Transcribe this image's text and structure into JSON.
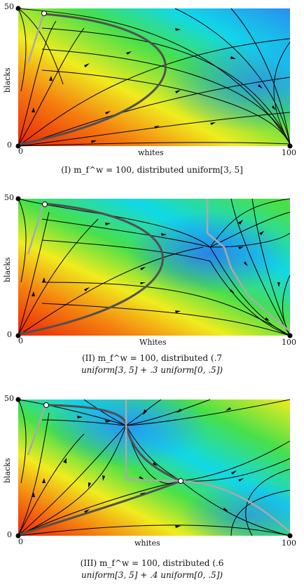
{
  "panels": [
    {
      "y_tick_top": "50",
      "y_tick_bottom": "0",
      "x_tick_left": "0",
      "x_tick_right": "100",
      "xlabel": "whites",
      "ylabel": "blacks",
      "caption_line1": "(I) m_f^w = 100, distributed uniform[3, 5]",
      "caption_line2": ""
    },
    {
      "y_tick_top": "50",
      "y_tick_bottom": "0",
      "x_tick_left": "0",
      "x_tick_right": "100",
      "xlabel": "Whites",
      "ylabel": "blacks",
      "caption_line1": "(II) m_f^w = 100, distributed (.7",
      "caption_line2": "uniform[3, 5] + .3 uniform[0, .5])"
    },
    {
      "y_tick_top": "50",
      "y_tick_bottom": "0",
      "x_tick_left": "0",
      "x_tick_right": "100",
      "xlabel": "whites",
      "ylabel": "blacks",
      "caption_line1": "(III) m_f^w = 100, distributed (.6",
      "caption_line2": "uniform[3, 5] + .4 uniform[0, .5])"
    }
  ],
  "colors": {
    "red": "#e8230a",
    "orange": "#f57d0f",
    "yellow": "#f0ec1e",
    "green": "#48e04a",
    "cyan": "#10d8e8",
    "blue": "#2a8ef0",
    "separatrix": "#505050",
    "boundary": "#a9a9a9"
  }
}
